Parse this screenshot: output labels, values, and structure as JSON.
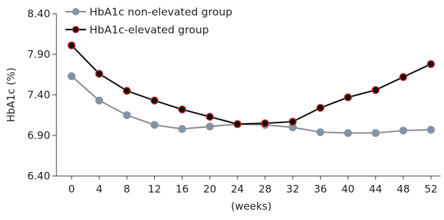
{
  "chart_data": {
    "type": "line",
    "title": "",
    "xlabel": "(weeks)",
    "ylabel": "HbA1c (%)",
    "x": [
      0,
      4,
      8,
      12,
      16,
      20,
      24,
      28,
      32,
      36,
      40,
      44,
      48,
      52
    ],
    "x_tick_labels": [
      "0",
      "4",
      "8",
      "12",
      "16",
      "20",
      "24",
      "28",
      "32",
      "36",
      "40",
      "44",
      "48",
      "52"
    ],
    "ylim": [
      6.4,
      8.4
    ],
    "y_ticks": [
      6.4,
      6.9,
      7.4,
      7.9,
      8.4
    ],
    "y_tick_labels": [
      "6.40",
      "6.90",
      "7.40",
      "7.90",
      "8.40"
    ],
    "grid": false,
    "legend_position": "top-left",
    "series": [
      {
        "name": "HbA1c non-elevated group",
        "line_color": "#8e8e8e",
        "marker_fill": "#8593a6",
        "marker_edge": "#8593a6",
        "values": [
          7.63,
          7.33,
          7.15,
          7.03,
          6.98,
          7.01,
          7.04,
          7.03,
          7.0,
          6.94,
          6.93,
          6.93,
          6.96,
          6.97
        ]
      },
      {
        "name": "HbA1c-elevated group",
        "line_color": "#111111",
        "marker_fill": "#111111",
        "marker_edge": "#d02020",
        "values": [
          8.01,
          7.66,
          7.45,
          7.33,
          7.22,
          7.13,
          7.04,
          7.05,
          7.07,
          7.24,
          7.37,
          7.46,
          7.62,
          7.78
        ]
      }
    ]
  }
}
